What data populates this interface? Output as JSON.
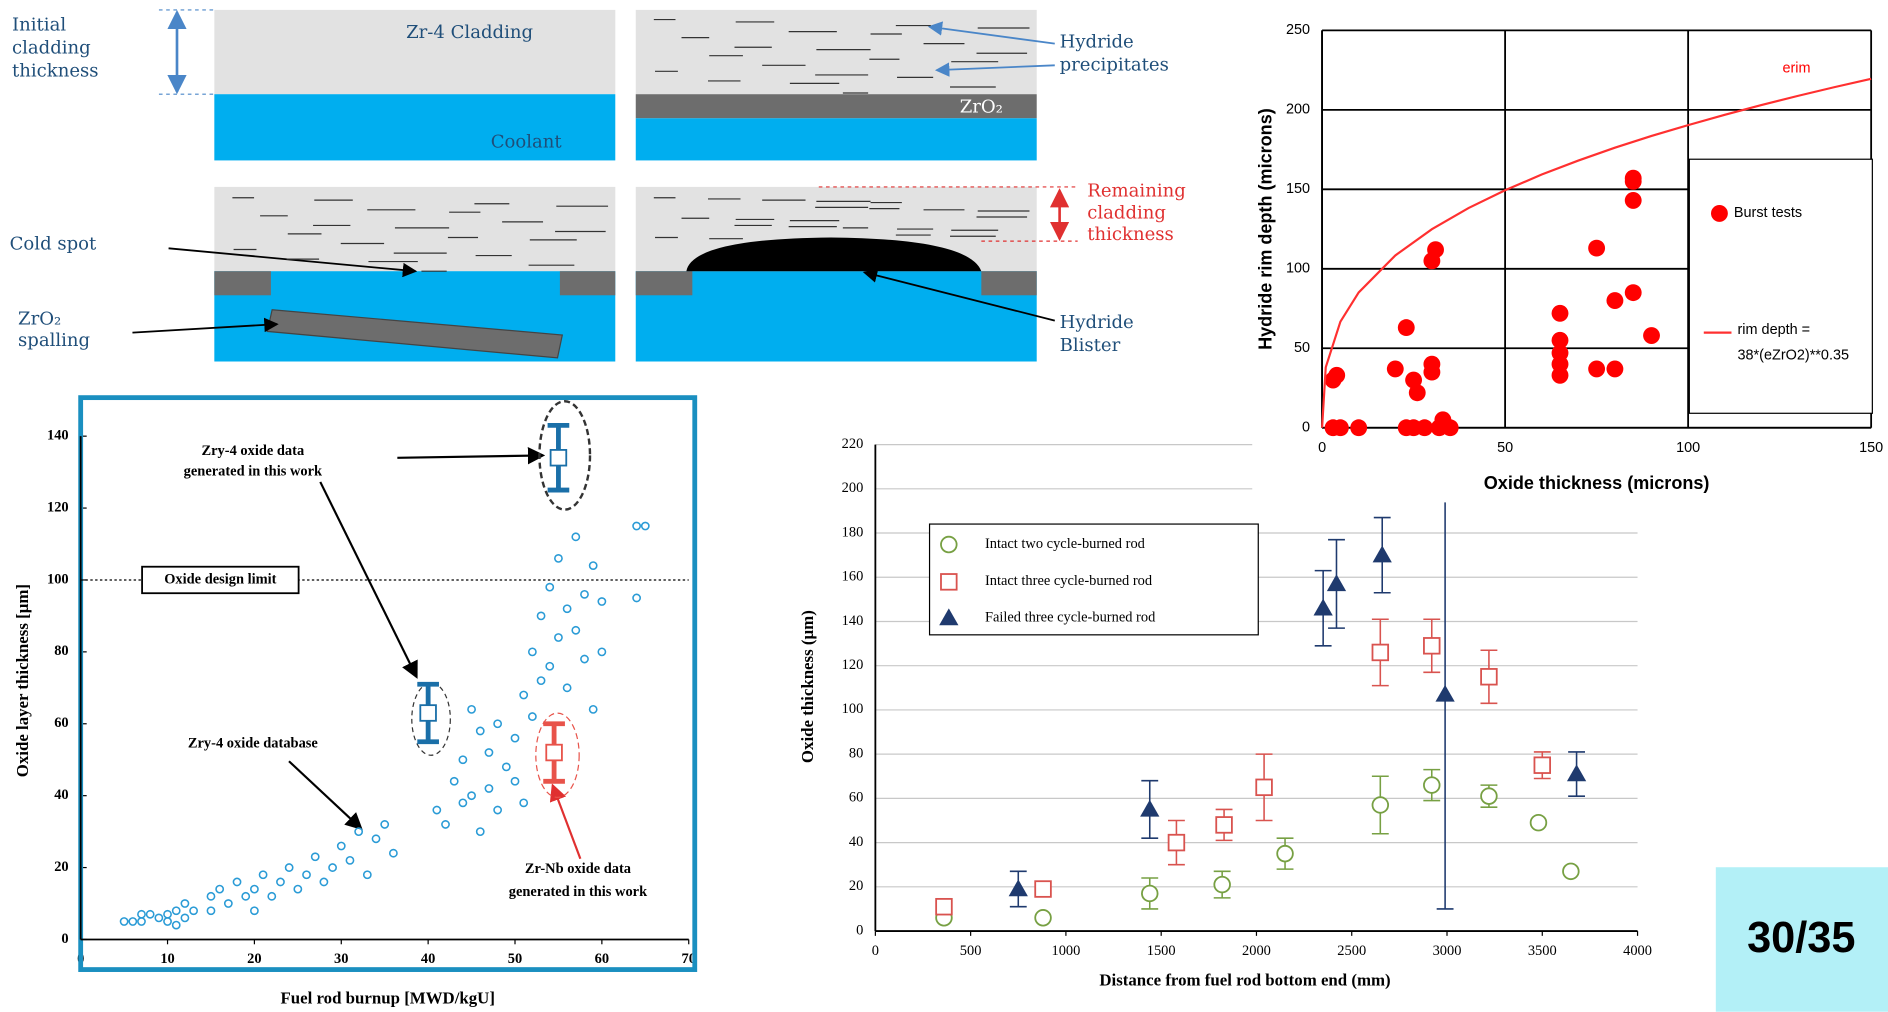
{
  "diagram": {
    "initial_cladding_thickness": [
      "Initial",
      "cladding",
      "thickness"
    ],
    "cladding": "Zr-4 Cladding",
    "coolant": "Coolant",
    "hydride_precipitates": [
      "Hydride",
      "precipitates"
    ],
    "oxide_layer": "ZrO₂",
    "cold_spot": "Cold spot",
    "spalling": [
      "ZrO₂",
      "spalling"
    ],
    "remaining_thickness": [
      "Remaining",
      "cladding",
      "thickness"
    ],
    "hydride_blister": [
      "Hydride",
      "Blister"
    ]
  },
  "chart_data": [
    {
      "type": "scatter",
      "x_label": "Oxide thickness (microns)",
      "y_label": "Hydride rim depth (microns)",
      "xlim": [
        0,
        150
      ],
      "ylim": [
        0,
        250
      ],
      "xticks": [
        0,
        50,
        100,
        150
      ],
      "yticks": [
        0,
        50,
        100,
        150,
        200,
        250
      ],
      "grid": "both",
      "legend": "right",
      "series": [
        {
          "name": "Burst tests",
          "color": "#ff0000",
          "marker": "dot",
          "x": [
            3,
            5,
            10,
            3,
            4,
            20,
            23,
            25,
            28,
            23,
            25,
            26,
            30,
            30,
            30,
            31,
            32,
            33,
            35,
            65,
            65,
            65,
            65,
            65,
            75,
            75,
            80,
            80,
            85,
            85,
            85,
            85,
            90
          ],
          "values": [
            0,
            0,
            0,
            30,
            33,
            37,
            0,
            0,
            0,
            63,
            30,
            22,
            35,
            40,
            105,
            112,
            0,
            5,
            0,
            33,
            40,
            47,
            55,
            72,
            37,
            113,
            37,
            80,
            85,
            143,
            155,
            157,
            58
          ]
        },
        {
          "name": [
            "rim depth   =",
            "38*(eZrO2)**0.35"
          ],
          "color": "#ff3030",
          "marker": "line",
          "x": [
            0,
            1,
            5,
            10,
            20,
            30,
            40,
            50,
            60,
            70,
            80,
            90,
            100,
            110,
            120,
            130,
            140,
            150
          ],
          "values": [
            0,
            38,
            66.7,
            85.1,
            108.4,
            124.9,
            138.2,
            149.4,
            159.3,
            168.1,
            176.2,
            183.6,
            190.4,
            196.9,
            203.0,
            208.8,
            214.3,
            219.5
          ]
        }
      ],
      "annotations": [
        {
          "text": [
            "erim"
          ]
        }
      ]
    },
    {
      "type": "scatter",
      "x_label": "Fuel rod burnup [MWD/kgU]",
      "y_label": "Oxide layer thickness [µm]",
      "xlim": [
        0,
        70
      ],
      "ylim": [
        0,
        140
      ],
      "xticks": [
        0,
        10,
        20,
        30,
        40,
        50,
        60,
        70
      ],
      "yticks": [
        0,
        20,
        40,
        60,
        80,
        100,
        120,
        140
      ],
      "grid": false,
      "series": [
        {
          "color": "#2a9bd6",
          "marker": "small-circle",
          "x": [
            5,
            6,
            7,
            7,
            8,
            9,
            10,
            10,
            11,
            11,
            12,
            12,
            13,
            15,
            15,
            16,
            17,
            18,
            19,
            20,
            20,
            21,
            22,
            23,
            24,
            25,
            26,
            27,
            28,
            29,
            30,
            31,
            32,
            33,
            34,
            35,
            36,
            41,
            42,
            43,
            44,
            44,
            45,
            45,
            46,
            46,
            47,
            47,
            48,
            48,
            49,
            50,
            50,
            51,
            51,
            52,
            52,
            53,
            53,
            54,
            54,
            55,
            55,
            56,
            56,
            57,
            57,
            58,
            58,
            59,
            59,
            60,
            60,
            64,
            65,
            64
          ],
          "values": [
            5,
            5,
            5,
            7,
            7,
            6,
            5,
            7,
            4,
            8,
            6,
            10,
            8,
            8,
            12,
            14,
            10,
            16,
            12,
            8,
            14,
            18,
            12,
            16,
            20,
            14,
            18,
            23,
            16,
            20,
            26,
            22,
            30,
            18,
            28,
            32,
            24,
            36,
            32,
            44,
            38,
            50,
            40,
            64,
            30,
            58,
            42,
            52,
            36,
            60,
            48,
            44,
            56,
            38,
            68,
            62,
            80,
            72,
            90,
            76,
            98,
            84,
            106,
            70,
            92,
            86,
            112,
            78,
            96,
            64,
            104,
            80,
            94,
            115,
            115,
            95
          ]
        },
        {
          "color": "#1a6fa8",
          "marker": "open-square",
          "x": [
            40,
            55
          ],
          "values": [
            63,
            134
          ],
          "errors": [
            8,
            9
          ]
        },
        {
          "color": "#e8534a",
          "marker": "open-square",
          "x": [
            54.5
          ],
          "values": [
            52
          ],
          "errors": [
            8
          ]
        }
      ],
      "annotations": [
        {
          "text": [
            "Zry-4 oxide data",
            "generated in this work"
          ]
        },
        {
          "text": [
            "Oxide design limit"
          ],
          "value": 100
        },
        {
          "text": [
            "Zry-4 oxide database"
          ]
        },
        {
          "text": [
            "Zr-Nb oxide data",
            "generated in this work"
          ]
        }
      ]
    },
    {
      "type": "scatter",
      "x_label": "Distance from fuel rod bottom end (mm)",
      "y_label": "Oxide thickness (µm)",
      "xlim": [
        0,
        4000
      ],
      "ylim": [
        0,
        220
      ],
      "xticks": [
        0,
        500,
        1000,
        1500,
        2000,
        2500,
        3000,
        3500,
        4000
      ],
      "yticks": [
        0,
        20,
        40,
        60,
        80,
        100,
        120,
        140,
        160,
        180,
        200,
        220
      ],
      "grid": "y",
      "legend": "upper left",
      "series": [
        {
          "name": "Intact two cycle-burned rod",
          "color": "#77a043",
          "marker": "open-circle",
          "x": [
            360,
            880,
            1440,
            1820,
            2150,
            2650,
            2920,
            3220,
            3480,
            3650
          ],
          "values": [
            6,
            6,
            17,
            21,
            35,
            57,
            66,
            61,
            49,
            27
          ],
          "errors": [
            null,
            null,
            7,
            6,
            7,
            13,
            7,
            5,
            null,
            null
          ]
        },
        {
          "name": "Intact three cycle-burned rod",
          "color": "#d9534f",
          "marker": "open-square",
          "x": [
            360,
            880,
            1580,
            1830,
            2040,
            2650,
            2920,
            3220,
            3500
          ],
          "values": [
            11,
            19,
            40,
            48,
            65,
            126,
            129,
            115,
            75
          ],
          "errors": [
            null,
            null,
            10,
            7,
            15,
            15,
            12,
            12,
            6
          ]
        },
        {
          "name": "Failed three cycle-burned rod",
          "color": "#1f3a6e",
          "marker": "triangle",
          "x": [
            750,
            1440,
            2350,
            2420,
            2660,
            2990,
            3680
          ],
          "values": [
            19,
            55,
            146,
            157,
            170,
            107,
            71
          ],
          "errors": [
            8,
            13,
            17,
            20,
            17,
            97,
            10
          ]
        }
      ]
    }
  ],
  "page_number": "30/35"
}
